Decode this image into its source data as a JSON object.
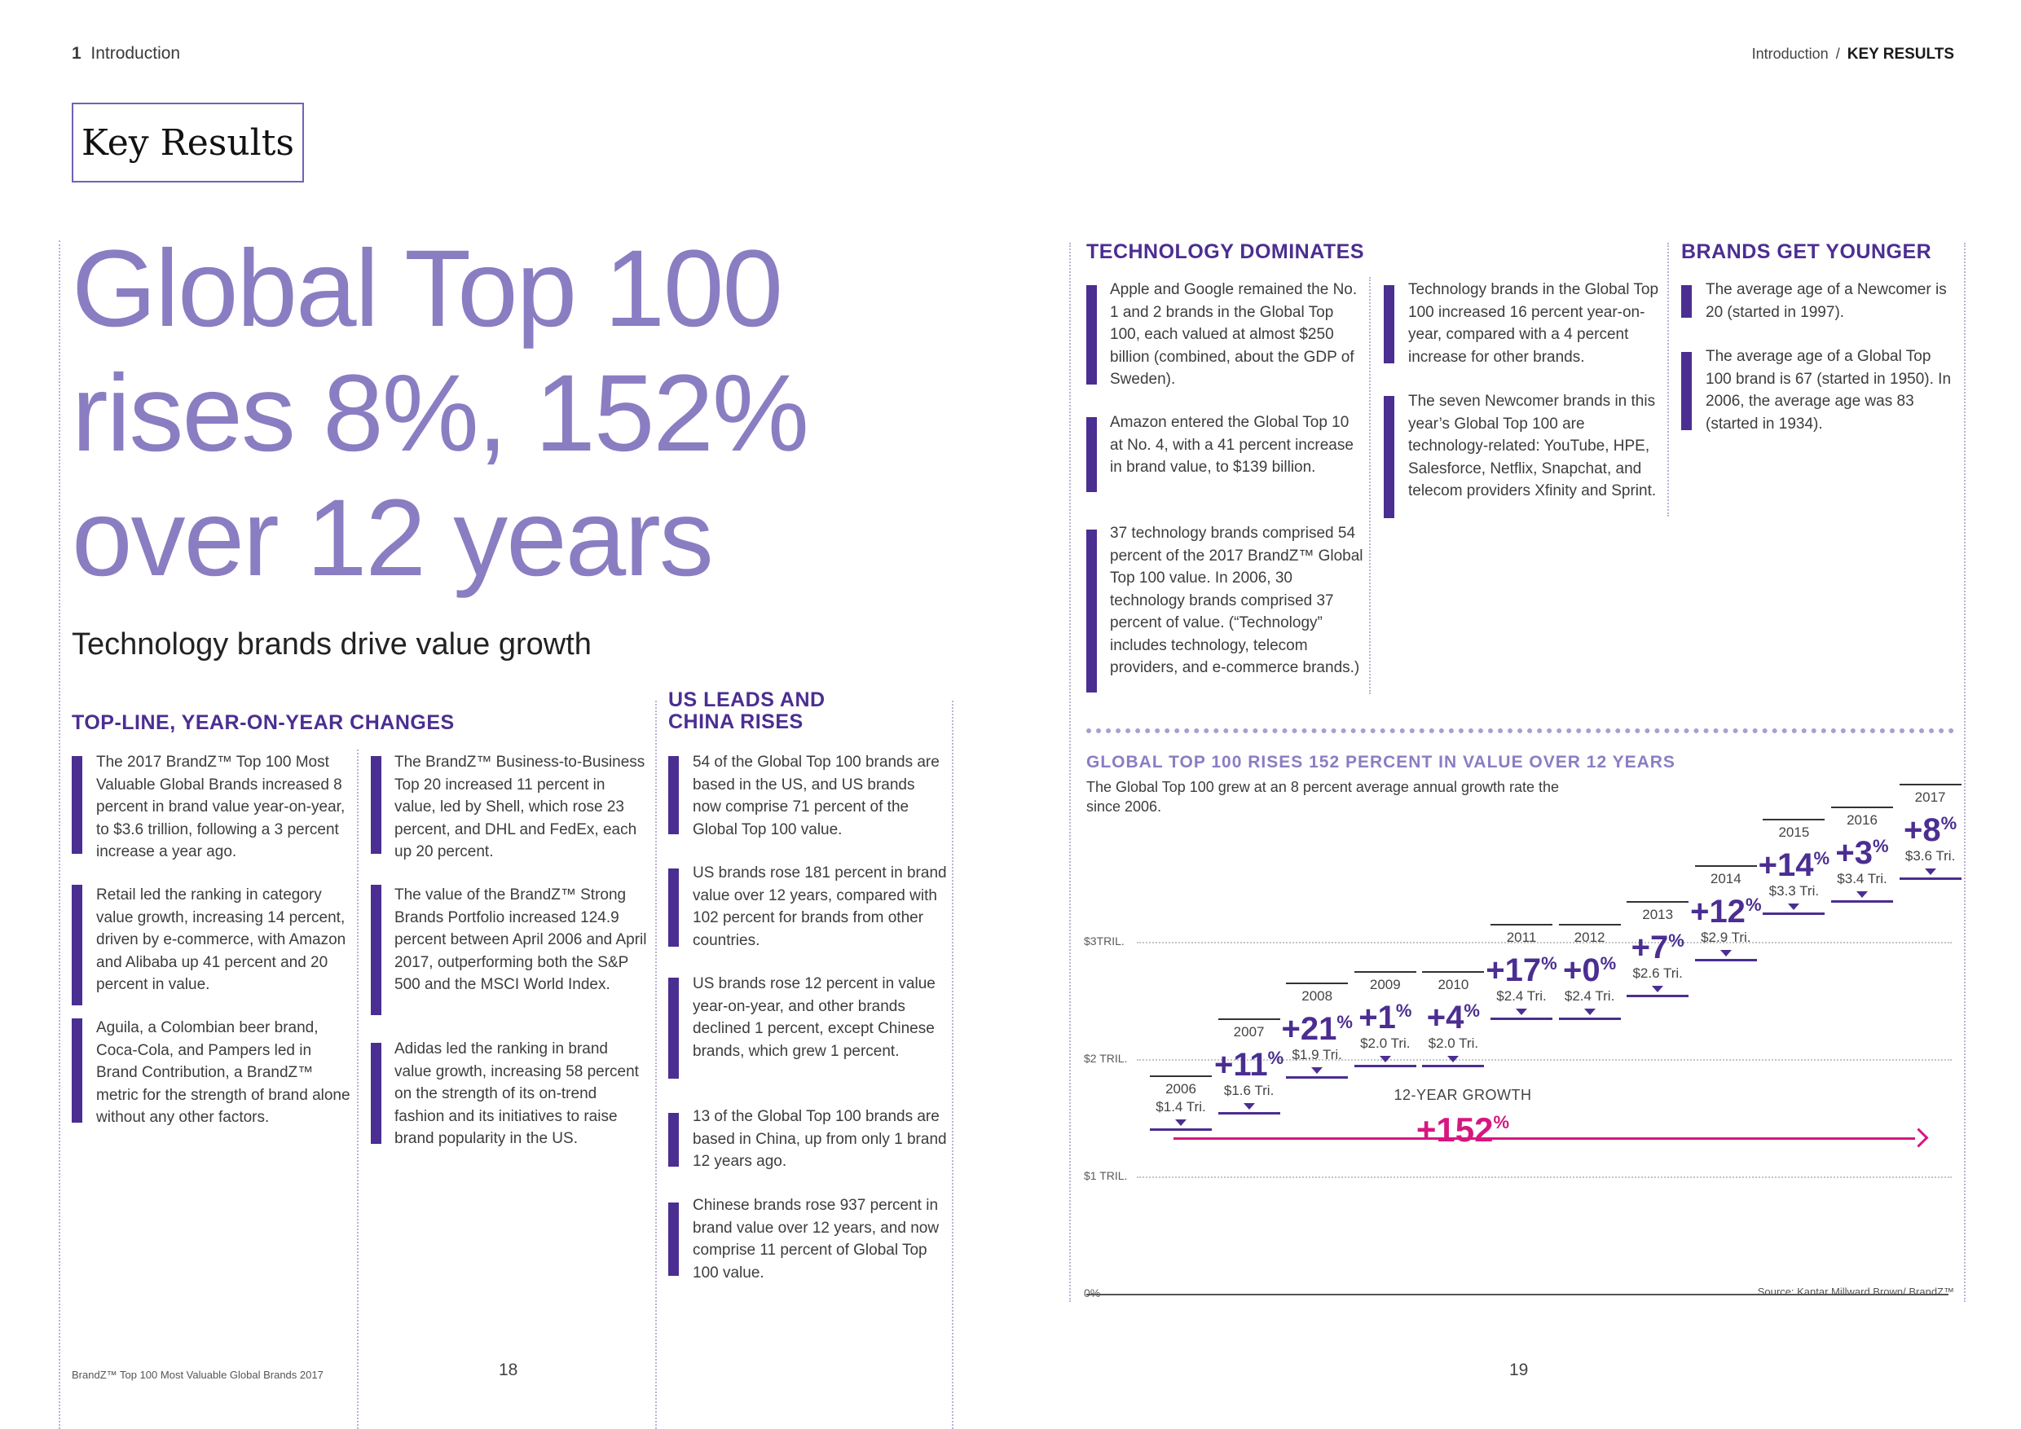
{
  "header": {
    "page_number": "1",
    "section": "Introduction",
    "breadcrumb_section": "Introduction",
    "breadcrumb_sep": "/",
    "breadcrumb_current": "KEY RESULTS"
  },
  "title_box": "Key Results",
  "headline": [
    "Global Top 100",
    "rises 8%, 152%",
    "over 12 years"
  ],
  "subheadline": "Technology brands drive value growth",
  "topline": {
    "heading": "TOP-LINE, YEAR-ON-YEAR CHANGES",
    "col1": [
      "The 2017 BrandZ™ Top 100 Most Valuable Global Brands increased 8 percent in brand value year-on-year, to $3.6 trillion,  following a 3 percent increase a year ago.",
      "Retail led the ranking in category value growth, increasing 14 percent, driven by e-commerce, with Amazon and Alibaba up 41 percent and 20 percent in value.",
      "Aguila, a Colombian beer brand, Coca-Cola, and Pampers led in Brand Contribution, a BrandZ™ metric for the strength of brand alone without any other factors."
    ],
    "col2": [
      "The BrandZ™ Business-to-Business Top 20 increased 11 percent in value, led by Shell, which rose 23 percent, and DHL and FedEx, each up 20 percent.",
      "The value of the BrandZ™ Strong Brands Portfolio increased 124.9 percent between April 2006 and April 2017, outperforming both the S&P 500 and the MSCI World Index.",
      "Adidas led the ranking in brand value growth, increasing 58 percent on the strength of its on-trend fashion and its initiatives to raise brand popularity in the US."
    ]
  },
  "us_china": {
    "heading": [
      "US LEADS AND",
      "CHINA RISES"
    ],
    "items": [
      "54 of the Global Top 100 brands are based in the US, and US brands now comprise 71 percent of the Global Top 100 value.",
      "US brands rose 181 percent in brand value over 12 years, compared with 102 percent for brands from other countries.",
      "US brands rose 12 percent in value year-on-year, and other brands declined 1 percent, except Chinese brands, which grew 1 percent.",
      "13 of the Global Top 100 brands are based in China, up from only 1 brand 12 years ago.",
      "Chinese brands rose 937 percent in brand value over 12 years, and now comprise 11 percent of Global Top 100 value."
    ]
  },
  "technology": {
    "heading": "TECHNOLOGY DOMINATES",
    "col1": [
      "Apple and Google remained the No. 1 and 2 brands in the Global Top 100, each valued at almost $250 billion (combined, about the GDP of Sweden).",
      "Amazon entered the Global Top 10 at No. 4, with a 41 percent increase in brand value, to $139 billion.",
      "37 technology brands comprised 54 percent of the 2017 BrandZ™ Global Top 100 value. In 2006, 30 technology brands comprised 37 percent of value. (“Technology” includes technology, telecom providers, and e-commerce brands.)"
    ],
    "col2": [
      "Technology brands in the Global Top 100 increased 16 percent year-on-year, compared with a 4 percent increase for other brands.",
      "The seven Newcomer brands in this year’s Global Top 100 are technology-related: YouTube, HPE, Salesforce, Netflix, Snapchat, and telecom providers Xfinity and Sprint."
    ]
  },
  "younger": {
    "heading": "BRANDS GET YOUNGER",
    "items": [
      "The average age of a Newcomer is 20 (started in 1997).",
      "The average age of a Global Top 100 brand is 67 (started in 1950). In 2006, the average age was 83 (started in 1934)."
    ]
  },
  "chart_data": {
    "type": "step",
    "title": "GLOBAL TOP 100 RISES 152 PERCENT IN VALUE OVER 12 YEARS",
    "subtitle": "The Global Top 100 grew at an 8 percent average annual growth rate the since 2006.",
    "y_ticks": [
      {
        "label": "0%",
        "value": 0
      },
      {
        "label": "$1 TRIL.",
        "value": 1
      },
      {
        "label": "$2 TRIL.",
        "value": 2
      },
      {
        "label": "$3TRIL.",
        "value": 3
      }
    ],
    "points": [
      {
        "year": "2006",
        "pct": "",
        "value_label": "$1.4 Tri.",
        "value": 1.4
      },
      {
        "year": "2007",
        "pct": "+11",
        "value_label": "$1.6 Tri.",
        "value": 1.6
      },
      {
        "year": "2008",
        "pct": "+21",
        "value_label": "$1.9 Tri.",
        "value": 1.9
      },
      {
        "year": "2009",
        "pct": "+1",
        "value_label": "$2.0 Tri.",
        "value": 2.0
      },
      {
        "year": "2010",
        "pct": "+4",
        "value_label": "$2.0 Tri.",
        "value": 2.0
      },
      {
        "year": "2011",
        "pct": "+17",
        "value_label": "$2.4 Tri.",
        "value": 2.4
      },
      {
        "year": "2012",
        "pct": "+0",
        "value_label": "$2.4 Tri.",
        "value": 2.4
      },
      {
        "year": "2013",
        "pct": "+7",
        "value_label": "$2.6 Tri.",
        "value": 2.6
      },
      {
        "year": "2014",
        "pct": "+12",
        "value_label": "$2.9 Tri.",
        "value": 2.9
      },
      {
        "year": "2015",
        "pct": "+14",
        "value_label": "$3.3 Tri.",
        "value": 3.3
      },
      {
        "year": "2016",
        "pct": "+3",
        "value_label": "$3.4 Tri.",
        "value": 3.4
      },
      {
        "year": "2017",
        "pct": "+8",
        "value_label": "$3.6 Tri.",
        "value": 3.6
      }
    ],
    "growth_label": "12-YEAR GROWTH",
    "growth_value": "+152",
    "pct_symbol": "%",
    "source": "Source: Kantar Millward Brown/ BrandZ™",
    "colors": {
      "accent": "#4b2e91",
      "growth": "#d6177f"
    }
  },
  "footer": {
    "publication": "BrandZ™ Top 100 Most Valuable Global Brands 2017",
    "page_left": "18",
    "page_right": "19"
  }
}
